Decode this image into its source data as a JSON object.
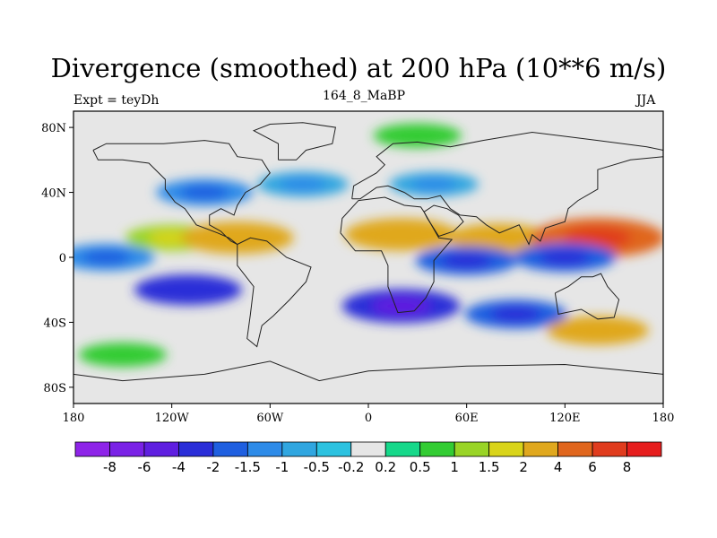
{
  "title": "Divergence (smoothed) at 200 hPa (10**6 m/s)",
  "subtitle_left": "Expt = teyDh",
  "subtitle_center": "164_8_MaBP",
  "subtitle_right": "JJA",
  "chart_data": {
    "type": "heatmap",
    "title": "Divergence (smoothed) at 200 hPa (10**6 m/s)",
    "variable": "Divergence (smoothed) at 200 hPa",
    "units": "10**6 m/s",
    "experiment": "teyDh",
    "period": "164_8_MaBP",
    "season": "JJA",
    "xlim": [
      -180,
      180
    ],
    "ylim": [
      -90,
      90
    ],
    "x_ticks": [
      {
        "value": -180,
        "label": "180"
      },
      {
        "value": -120,
        "label": "120W"
      },
      {
        "value": -60,
        "label": "60W"
      },
      {
        "value": 0,
        "label": "0"
      },
      {
        "value": 60,
        "label": "60E"
      },
      {
        "value": 120,
        "label": "120E"
      },
      {
        "value": 180,
        "label": "180"
      }
    ],
    "y_ticks": [
      {
        "value": 80,
        "label": "80N"
      },
      {
        "value": 40,
        "label": "40N"
      },
      {
        "value": 0,
        "label": "0"
      },
      {
        "value": -40,
        "label": "40S"
      },
      {
        "value": -80,
        "label": "80S"
      }
    ],
    "colorbar": {
      "levels": [
        "-8",
        "-6",
        "-4",
        "-2",
        "-1.5",
        "-1",
        "-0.5",
        "-0.2",
        "0.2",
        "0.5",
        "1",
        "1.5",
        "2",
        "4",
        "6",
        "8"
      ],
      "colors": [
        "#8e24e8",
        "#7a22e6",
        "#5f1fe0",
        "#2a2ed8",
        "#1f5fe0",
        "#2e8be8",
        "#30a6e0",
        "#2cc2e0",
        "#e6e6e6",
        "#16d88a",
        "#33cc33",
        "#99d426",
        "#d9d41a",
        "#e0a81e",
        "#e0661e",
        "#e03c1e",
        "#e61e1e"
      ]
    },
    "features": [
      {
        "region": "tropical East Pacific",
        "lon": -120,
        "lat": 12,
        "value": 1.2
      },
      {
        "region": "Central America",
        "lon": -80,
        "lat": 12,
        "value": 3
      },
      {
        "region": "North Africa / Sahel",
        "lon": 20,
        "lat": 14,
        "value": 3
      },
      {
        "region": "South Asia",
        "lon": 80,
        "lat": 12,
        "value": 2
      },
      {
        "region": "West Pacific",
        "lon": 140,
        "lat": 12,
        "value": 5
      },
      {
        "region": "Equatorial East Pacific",
        "lon": -160,
        "lat": 0,
        "value": -1.5
      },
      {
        "region": "Equatorial Indian Ocean",
        "lon": 60,
        "lat": -2,
        "value": -2
      },
      {
        "region": "Equatorial West Pacific",
        "lon": 120,
        "lat": 0,
        "value": -2
      },
      {
        "region": "South Pacific",
        "lon": -110,
        "lat": -20,
        "value": -2.5
      },
      {
        "region": "South Atlantic / southern Africa",
        "lon": 20,
        "lat": -30,
        "value": -3.5
      },
      {
        "region": "Southern Indian Ocean",
        "lon": 90,
        "lat": -35,
        "value": -2
      },
      {
        "region": "North Pacific",
        "lon": -100,
        "lat": 40,
        "value": -1.5
      },
      {
        "region": "North Atlantic",
        "lon": -40,
        "lat": 45,
        "value": -1
      },
      {
        "region": "Central Asia",
        "lon": 40,
        "lat": 45,
        "value": -0.8
      },
      {
        "region": "Southern midlatitudes",
        "lon": 140,
        "lat": -45,
        "value": 2
      },
      {
        "region": "Southern Ocean",
        "lon": -150,
        "lat": -60,
        "value": 0.7
      },
      {
        "region": "Arctic",
        "lon": 30,
        "lat": 75,
        "value": 0.7
      }
    ]
  }
}
